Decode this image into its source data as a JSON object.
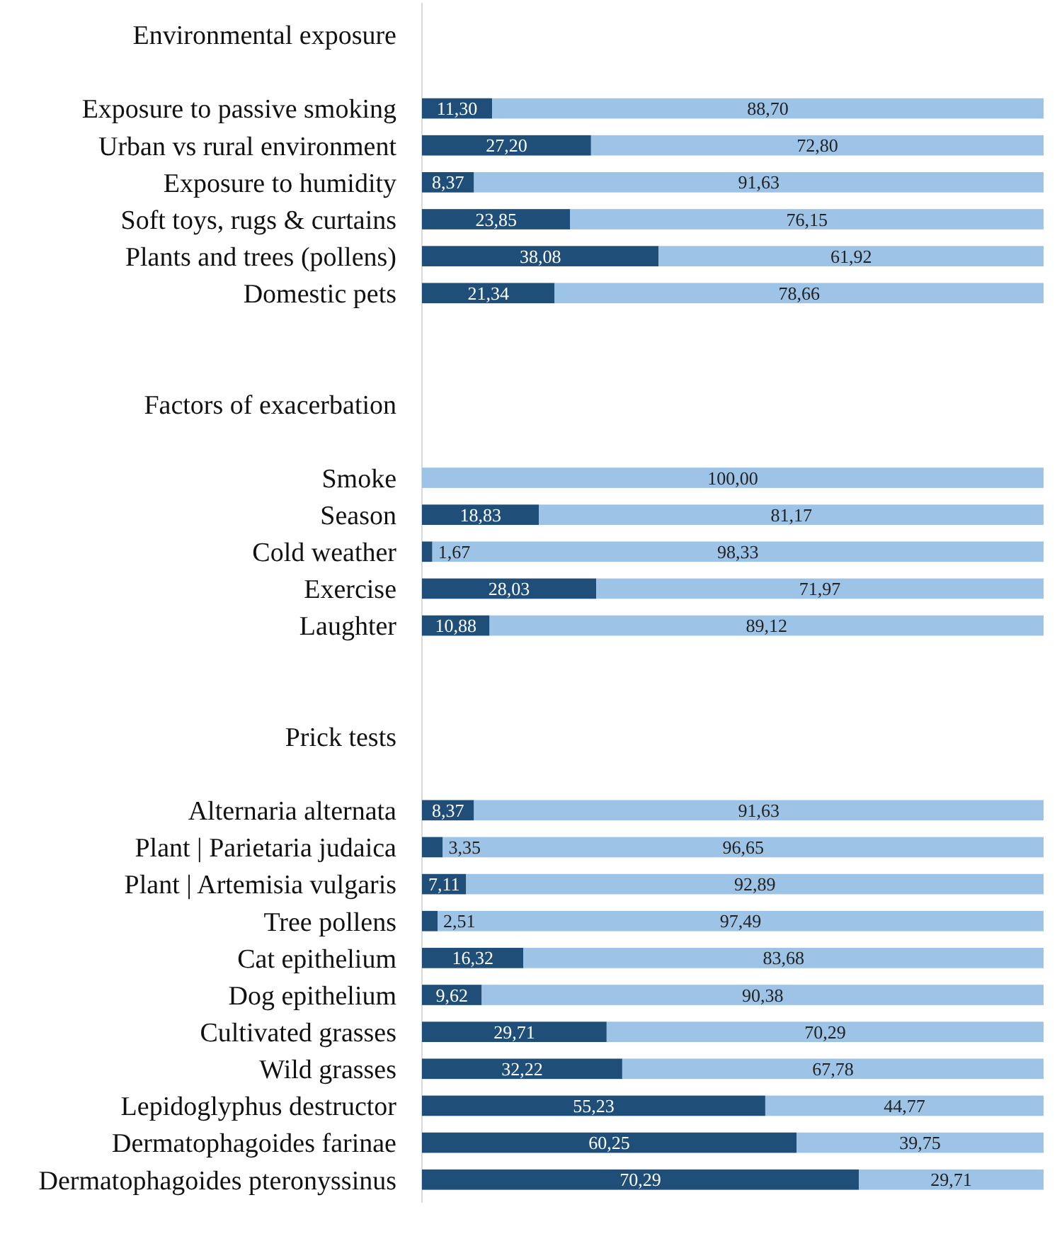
{
  "chart_data": {
    "type": "bar",
    "orientation": "horizontal",
    "stacked": true,
    "data_labels": true,
    "tick_labels": "y",
    "xlim": [
      0,
      100
    ],
    "categories": [
      "Environmental exposure",
      null,
      "Exposure to passive smoking",
      "Urban vs rural environment",
      "Exposure to humidity",
      "Soft toys, rugs & curtains",
      "Plants and trees (pollens)",
      "Domestic pets",
      null,
      null,
      "Factors of exacerbation",
      null,
      "Smoke",
      "Season",
      "Cold weather",
      "Exercise",
      "Laughter",
      null,
      null,
      "Prick tests",
      null,
      "Alternaria alternata",
      "Plant | Parietaria judaica",
      "Plant | Artemisia vulgaris ",
      "Tree pollens",
      "Cat epithelium",
      "Dog epithelium",
      "Cultivated grasses",
      "Wild grasses",
      "Lepidoglyphus destructor",
      "Dermatophagoides farinae",
      "Dermatophagoides pteronyssinus"
    ],
    "series": [
      {
        "color": "#1f4e79",
        "values": [
          null,
          null,
          11.3,
          27.2,
          8.37,
          23.85,
          38.08,
          21.34,
          null,
          null,
          null,
          null,
          null,
          18.83,
          1.67,
          28.03,
          10.88,
          null,
          null,
          null,
          null,
          8.37,
          3.35,
          7.11,
          2.51,
          16.32,
          9.62,
          29.71,
          32.22,
          55.23,
          60.25,
          70.29
        ],
        "value_labels": [
          null,
          null,
          "11,30",
          "27,20",
          "8,37",
          "23,85",
          "38,08",
          "21,34",
          null,
          null,
          null,
          null,
          null,
          "18,83",
          "1,67",
          "28,03",
          "10,88",
          null,
          null,
          null,
          null,
          "8,37",
          "3,35",
          "7,11",
          "2,51",
          "16,32",
          "9,62",
          "29,71",
          "32,22",
          "55,23",
          "60,25",
          "70,29"
        ]
      },
      {
        "color": "#9dc3e6",
        "values": [
          null,
          null,
          88.7,
          72.8,
          91.63,
          76.15,
          61.92,
          78.66,
          null,
          null,
          null,
          null,
          100,
          81.17,
          98.33,
          71.97,
          89.12,
          null,
          null,
          null,
          null,
          91.63,
          96.65,
          92.89,
          97.49,
          83.68,
          90.38,
          70.29,
          67.78,
          44.77,
          39.75,
          29.71
        ],
        "value_labels": [
          null,
          null,
          "88,70",
          "72,80",
          "91,63",
          "76,15",
          "61,92",
          "78,66",
          null,
          null,
          null,
          null,
          "100,00",
          "81,17",
          "98,33",
          "71,97",
          "89,12",
          null,
          null,
          null,
          null,
          "91,63",
          "96,65",
          "92,89",
          "97,49",
          "83,68",
          "90,38",
          "70,29",
          "67,78",
          "44,77",
          "39,75",
          "29,71"
        ]
      }
    ]
  }
}
